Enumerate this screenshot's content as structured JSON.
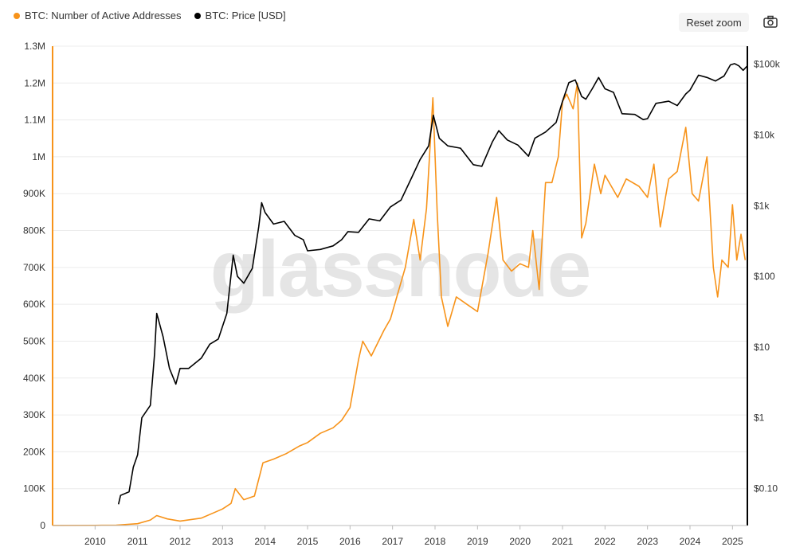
{
  "legend": {
    "series1": "BTC: Number of Active Addresses",
    "series2": "BTC: Price [USD]"
  },
  "toolbar": {
    "reset_zoom": "Reset zoom",
    "camera_icon": "camera-icon"
  },
  "watermark": "glassnode",
  "colors": {
    "addresses": "#f7931a",
    "price": "#000000",
    "grid": "#ececec"
  },
  "chart_data": {
    "type": "line",
    "title": "",
    "x_ticks": [
      "2010",
      "2011",
      "2012",
      "2013",
      "2014",
      "2015",
      "2016",
      "2017",
      "2018",
      "2019",
      "2020",
      "2021",
      "2022",
      "2023",
      "2024",
      "2025"
    ],
    "x_range": [
      2009.0,
      2025.35
    ],
    "left_axis": {
      "ticks": [
        "0",
        "100K",
        "200K",
        "300K",
        "400K",
        "500K",
        "600K",
        "700K",
        "800K",
        "900K",
        "1M",
        "1.1M",
        "1.2M",
        "1.3M"
      ],
      "range": [
        0,
        1300000
      ]
    },
    "right_axis": {
      "scale": "log",
      "ticks": [
        "$0.10",
        "$1",
        "$10",
        "$100",
        "$1k",
        "$10k",
        "$100k"
      ],
      "range": [
        0.03,
        180000
      ]
    },
    "grid": true,
    "legend_position": "top-left",
    "series": [
      {
        "name": "BTC: Number of Active Addresses",
        "axis": "left",
        "points": [
          [
            2009.0,
            200
          ],
          [
            2010.0,
            500
          ],
          [
            2010.5,
            1000
          ],
          [
            2011.0,
            5000
          ],
          [
            2011.3,
            15000
          ],
          [
            2011.45,
            27000
          ],
          [
            2011.7,
            18000
          ],
          [
            2012.0,
            12000
          ],
          [
            2012.5,
            20000
          ],
          [
            2012.8,
            35000
          ],
          [
            2013.0,
            45000
          ],
          [
            2013.2,
            60000
          ],
          [
            2013.3,
            100000
          ],
          [
            2013.5,
            70000
          ],
          [
            2013.75,
            80000
          ],
          [
            2013.95,
            170000
          ],
          [
            2014.2,
            180000
          ],
          [
            2014.5,
            195000
          ],
          [
            2014.8,
            215000
          ],
          [
            2015.0,
            225000
          ],
          [
            2015.3,
            250000
          ],
          [
            2015.6,
            265000
          ],
          [
            2015.8,
            285000
          ],
          [
            2016.0,
            320000
          ],
          [
            2016.2,
            450000
          ],
          [
            2016.3,
            500000
          ],
          [
            2016.5,
            460000
          ],
          [
            2016.8,
            530000
          ],
          [
            2016.95,
            560000
          ],
          [
            2017.1,
            620000
          ],
          [
            2017.3,
            700000
          ],
          [
            2017.5,
            830000
          ],
          [
            2017.65,
            720000
          ],
          [
            2017.8,
            860000
          ],
          [
            2017.95,
            1160000
          ],
          [
            2018.05,
            850000
          ],
          [
            2018.15,
            620000
          ],
          [
            2018.3,
            540000
          ],
          [
            2018.5,
            620000
          ],
          [
            2018.75,
            600000
          ],
          [
            2019.0,
            580000
          ],
          [
            2019.25,
            740000
          ],
          [
            2019.45,
            890000
          ],
          [
            2019.6,
            720000
          ],
          [
            2019.8,
            690000
          ],
          [
            2020.0,
            710000
          ],
          [
            2020.2,
            700000
          ],
          [
            2020.3,
            800000
          ],
          [
            2020.45,
            640000
          ],
          [
            2020.6,
            930000
          ],
          [
            2020.75,
            930000
          ],
          [
            2020.9,
            1000000
          ],
          [
            2021.0,
            1150000
          ],
          [
            2021.1,
            1170000
          ],
          [
            2021.25,
            1130000
          ],
          [
            2021.35,
            1200000
          ],
          [
            2021.45,
            780000
          ],
          [
            2021.55,
            820000
          ],
          [
            2021.75,
            980000
          ],
          [
            2021.9,
            900000
          ],
          [
            2022.0,
            950000
          ],
          [
            2022.3,
            890000
          ],
          [
            2022.5,
            940000
          ],
          [
            2022.8,
            920000
          ],
          [
            2023.0,
            890000
          ],
          [
            2023.15,
            980000
          ],
          [
            2023.3,
            810000
          ],
          [
            2023.5,
            940000
          ],
          [
            2023.7,
            960000
          ],
          [
            2023.9,
            1080000
          ],
          [
            2024.05,
            900000
          ],
          [
            2024.2,
            880000
          ],
          [
            2024.4,
            1000000
          ],
          [
            2024.55,
            700000
          ],
          [
            2024.65,
            620000
          ],
          [
            2024.75,
            720000
          ],
          [
            2024.9,
            700000
          ],
          [
            2025.0,
            870000
          ],
          [
            2025.1,
            720000
          ],
          [
            2025.2,
            790000
          ],
          [
            2025.3,
            720000
          ]
        ]
      },
      {
        "name": "BTC: Price [USD]",
        "axis": "right",
        "points": [
          [
            2010.55,
            0.06
          ],
          [
            2010.6,
            0.08
          ],
          [
            2010.8,
            0.09
          ],
          [
            2010.9,
            0.2
          ],
          [
            2011.0,
            0.3
          ],
          [
            2011.1,
            1.0
          ],
          [
            2011.3,
            1.5
          ],
          [
            2011.4,
            8
          ],
          [
            2011.45,
            30
          ],
          [
            2011.6,
            14
          ],
          [
            2011.75,
            5
          ],
          [
            2011.9,
            3
          ],
          [
            2012.0,
            5
          ],
          [
            2012.2,
            5
          ],
          [
            2012.5,
            7
          ],
          [
            2012.7,
            11
          ],
          [
            2012.9,
            13
          ],
          [
            2013.1,
            30
          ],
          [
            2013.25,
            200
          ],
          [
            2013.35,
            100
          ],
          [
            2013.5,
            80
          ],
          [
            2013.7,
            130
          ],
          [
            2013.85,
            500
          ],
          [
            2013.92,
            1100
          ],
          [
            2014.0,
            800
          ],
          [
            2014.2,
            550
          ],
          [
            2014.45,
            600
          ],
          [
            2014.7,
            380
          ],
          [
            2014.9,
            330
          ],
          [
            2015.0,
            230
          ],
          [
            2015.3,
            240
          ],
          [
            2015.6,
            270
          ],
          [
            2015.8,
            330
          ],
          [
            2015.95,
            430
          ],
          [
            2016.2,
            420
          ],
          [
            2016.45,
            650
          ],
          [
            2016.7,
            610
          ],
          [
            2016.95,
            960
          ],
          [
            2017.2,
            1200
          ],
          [
            2017.45,
            2500
          ],
          [
            2017.65,
            4500
          ],
          [
            2017.85,
            7000
          ],
          [
            2017.96,
            19000
          ],
          [
            2018.1,
            9000
          ],
          [
            2018.3,
            7000
          ],
          [
            2018.6,
            6500
          ],
          [
            2018.9,
            3800
          ],
          [
            2019.1,
            3600
          ],
          [
            2019.35,
            8000
          ],
          [
            2019.5,
            11500
          ],
          [
            2019.7,
            8500
          ],
          [
            2019.95,
            7200
          ],
          [
            2020.2,
            5000
          ],
          [
            2020.35,
            9000
          ],
          [
            2020.6,
            11000
          ],
          [
            2020.85,
            15000
          ],
          [
            2021.0,
            30000
          ],
          [
            2021.15,
            55000
          ],
          [
            2021.3,
            60000
          ],
          [
            2021.45,
            35000
          ],
          [
            2021.55,
            32000
          ],
          [
            2021.7,
            45000
          ],
          [
            2021.85,
            65000
          ],
          [
            2022.0,
            45000
          ],
          [
            2022.2,
            40000
          ],
          [
            2022.4,
            20000
          ],
          [
            2022.7,
            19500
          ],
          [
            2022.9,
            16500
          ],
          [
            2023.0,
            17000
          ],
          [
            2023.2,
            28000
          ],
          [
            2023.5,
            30000
          ],
          [
            2023.7,
            26000
          ],
          [
            2023.9,
            38000
          ],
          [
            2024.0,
            43000
          ],
          [
            2024.2,
            70000
          ],
          [
            2024.4,
            65000
          ],
          [
            2024.6,
            58000
          ],
          [
            2024.8,
            68000
          ],
          [
            2024.95,
            98000
          ],
          [
            2025.05,
            102000
          ],
          [
            2025.15,
            95000
          ],
          [
            2025.25,
            82000
          ],
          [
            2025.35,
            95000
          ]
        ]
      }
    ]
  }
}
